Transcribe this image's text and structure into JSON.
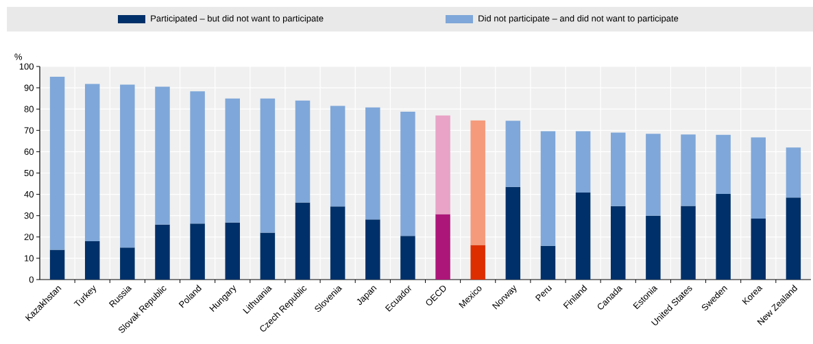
{
  "chart_data": {
    "type": "bar",
    "stacked": true,
    "ylabel": "%",
    "categories": [
      "Kazakhstan",
      "Turkey",
      "Russia",
      "Slovak Republic",
      "Poland",
      "Hungary",
      "Lithuania",
      "Czech Republic",
      "Slovenia",
      "Japan",
      "Ecuador",
      "OECD",
      "Mexico",
      "Norway",
      "Peru",
      "Finland",
      "Canada",
      "Estonia",
      "United States",
      "Sweden",
      "Korea",
      "New Zealand"
    ],
    "series": [
      {
        "name": "Participated – but did not want to participate",
        "color": "#003069",
        "colors": [
          "#003069",
          "#003069",
          "#003069",
          "#003069",
          "#003069",
          "#003069",
          "#003069",
          "#003069",
          "#003069",
          "#003069",
          "#003069",
          "#ad1679",
          "#dd2e00",
          "#003069",
          "#003069",
          "#003069",
          "#003069",
          "#003069",
          "#003069",
          "#003069",
          "#003069",
          "#003069"
        ],
        "values": [
          14,
          18,
          15,
          25.8,
          26.3,
          26.8,
          22,
          36.2,
          34.3,
          28.2,
          20.5,
          30.7,
          16.2,
          43.5,
          15.8,
          40.8,
          34.5,
          30,
          34.6,
          40.2,
          28.6,
          38.5
        ]
      },
      {
        "name": "Did not participate – and did not want to participate",
        "color": "#7fa7d9",
        "colors": [
          "#7fa7d9",
          "#7fa7d9",
          "#7fa7d9",
          "#7fa7d9",
          "#7fa7d9",
          "#7fa7d9",
          "#7fa7d9",
          "#7fa7d9",
          "#7fa7d9",
          "#7fa7d9",
          "#7fa7d9",
          "#e8a3c6",
          "#f59a7a",
          "#7fa7d9",
          "#7fa7d9",
          "#7fa7d9",
          "#7fa7d9",
          "#7fa7d9",
          "#7fa7d9",
          "#7fa7d9",
          "#7fa7d9",
          "#7fa7d9"
        ],
        "values": [
          81.2,
          73.8,
          76.5,
          64.7,
          62,
          58.2,
          63,
          47.8,
          47.2,
          52.6,
          58.3,
          46.3,
          58.5,
          31,
          53.8,
          28.8,
          34.5,
          38.4,
          33.5,
          27.7,
          38.1,
          23.5
        ]
      }
    ],
    "ylim": [
      0,
      100
    ],
    "yticks": [
      0,
      10,
      20,
      30,
      40,
      50,
      60,
      70,
      80,
      90,
      100
    ],
    "grid": true,
    "legend": "top"
  }
}
